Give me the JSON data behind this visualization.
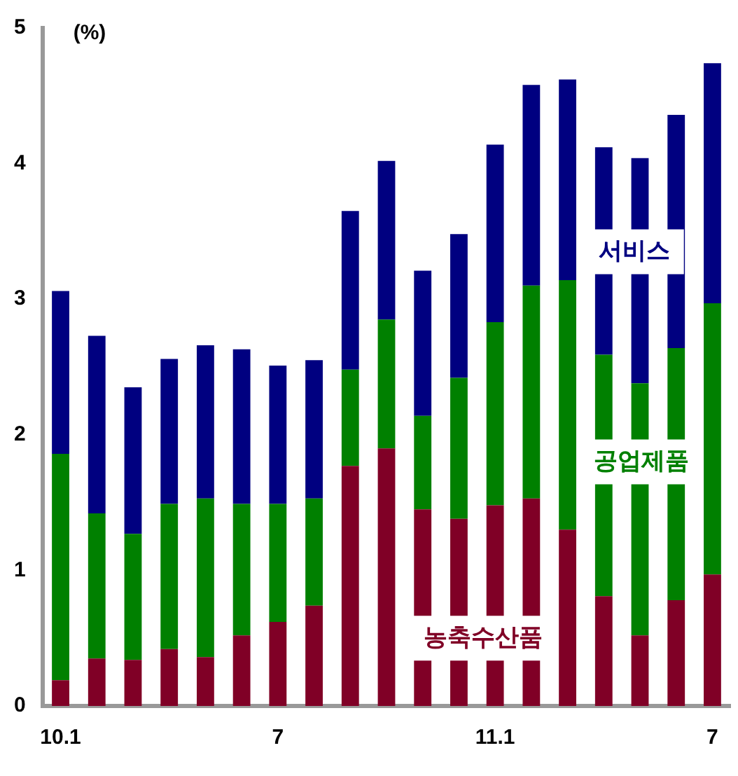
{
  "chart_data": {
    "type": "bar",
    "stacked": true,
    "ylabel": "(%)",
    "categories": [
      "10.1",
      null,
      null,
      null,
      null,
      null,
      "7",
      null,
      null,
      null,
      null,
      null,
      "11.1",
      null,
      null,
      null,
      null,
      null,
      "7"
    ],
    "series": [
      {
        "name": "농축수산품",
        "color": "#800026",
        "values": [
          0.19,
          0.35,
          0.34,
          0.42,
          0.36,
          0.52,
          0.62,
          0.74,
          1.77,
          1.9,
          1.45,
          1.38,
          1.48,
          1.53,
          1.3,
          0.81,
          0.52,
          0.78,
          0.97
        ]
      },
      {
        "name": "공업제품",
        "color": "#008000",
        "values": [
          1.67,
          1.07,
          0.93,
          1.07,
          1.17,
          0.97,
          0.87,
          0.79,
          0.71,
          0.95,
          0.69,
          1.04,
          1.35,
          1.57,
          1.84,
          1.78,
          1.86,
          1.86,
          2.0
        ]
      },
      {
        "name": "서비스",
        "color": "#000080",
        "values": [
          1.2,
          1.31,
          1.08,
          1.07,
          1.13,
          1.14,
          1.02,
          1.02,
          1.17,
          1.17,
          1.07,
          1.06,
          1.31,
          1.48,
          1.48,
          1.53,
          1.66,
          1.72,
          1.77
        ]
      }
    ],
    "ylim": [
      0,
      5
    ],
    "yticks": [
      0,
      1,
      2,
      3,
      4,
      5
    ],
    "grid": false,
    "legend": false
  }
}
